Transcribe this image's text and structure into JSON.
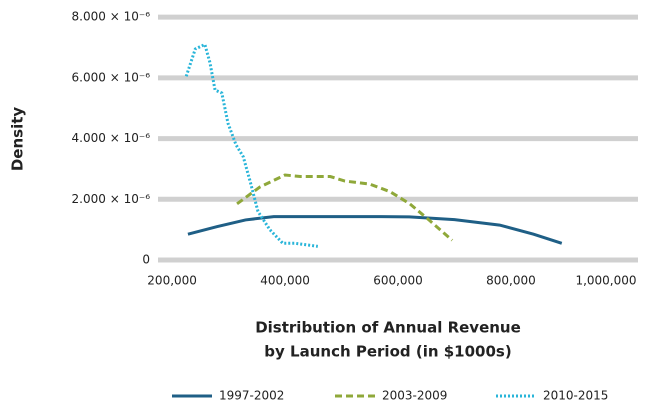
{
  "chart_data": {
    "type": "line",
    "ylabel": "Density",
    "xlabel": [
      "Distribution of Annual Revenue",
      "by Launch Period (in $1000s)"
    ],
    "xlim": [
      175000,
      1025000
    ],
    "xticks": [
      {
        "value": 200000,
        "label": "200,000"
      },
      {
        "value": 400000,
        "label": "400,000"
      },
      {
        "value": 600000,
        "label": "600,000"
      },
      {
        "value": 800000,
        "label": "800,000"
      },
      {
        "value": 1000000,
        "label": "1,000,000"
      }
    ],
    "ylim": [
      0,
      8.4e-06
    ],
    "yticks": [
      0,
      {
        "value": 2e-06,
        "label": "2.000 × 10⁻⁶"
      },
      {
        "value": 4e-06,
        "label": "4.000 × 10⁻⁶"
      },
      {
        "value": 6e-06,
        "label": "6.000 × 10⁻⁶"
      },
      {
        "value": 8e-06,
        "label": "8.000 × 10⁻⁶"
      }
    ],
    "grid": true,
    "legend": "bottom",
    "series": [
      {
        "name": "1997-2002",
        "color": "#1f5f86",
        "dash": "solid",
        "x": [
          228000,
          280000,
          330000,
          380000,
          450000,
          550000,
          620000,
          700000,
          780000,
          840000,
          890000
        ],
        "values": [
          8.5e-07,
          1.1e-06,
          1.32e-06,
          1.43e-06,
          1.43e-06,
          1.43e-06,
          1.42e-06,
          1.33e-06,
          1.15e-06,
          8.5e-07,
          5.5e-07
        ]
      },
      {
        "name": "2003-2009",
        "color": "#8fa83a",
        "dash": "dashed",
        "x": [
          315000,
          355000,
          400000,
          427000,
          480000,
          506000,
          550000,
          586000,
          621000,
          656000,
          696000
        ],
        "values": [
          1.85e-06,
          2.4e-06,
          2.8e-06,
          2.75e-06,
          2.75e-06,
          2.6e-06,
          2.5e-06,
          2.25e-06,
          1.85e-06,
          1.3e-06,
          6.5e-07
        ]
      },
      {
        "name": "2010-2015",
        "color": "#29b5d9",
        "dash": "dotted",
        "x": [
          225000,
          241000,
          258000,
          267000,
          276000,
          288000,
          299000,
          313000,
          326000,
          338000,
          352000,
          373000,
          396000,
          418000,
          458000
        ],
        "values": [
          6.05e-06,
          6.95e-06,
          7.1e-06,
          6.5e-06,
          5.6e-06,
          5.5e-06,
          4.5e-06,
          3.8e-06,
          3.4e-06,
          2.6e-06,
          1.6e-06,
          1e-06,
          5.5e-07,
          5.5e-07,
          4.5e-07
        ]
      }
    ]
  }
}
